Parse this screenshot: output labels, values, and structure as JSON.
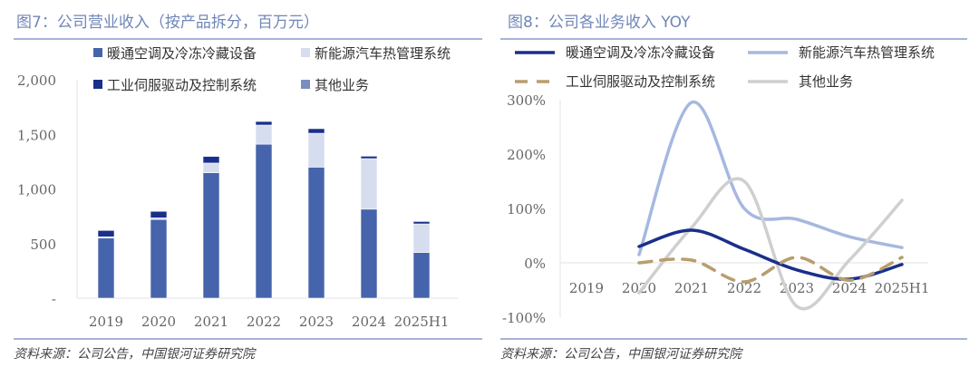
{
  "chart_data": [
    {
      "type": "bar",
      "stacked": true,
      "title": "图7：公司营业收入（按产品拆分，百万元）",
      "categories": [
        "2019",
        "2020",
        "2021",
        "2022",
        "2023",
        "2024",
        "2025H1"
      ],
      "series": [
        {
          "name": "暖通空调及冷冻冷藏设备",
          "color": "#4664ab",
          "values": [
            550,
            720,
            1148,
            1410,
            1200,
            815,
            418
          ]
        },
        {
          "name": "新能源汽车热管理系统",
          "color": "#d5ddef",
          "values": [
            12,
            15,
            89,
            175,
            310,
            463,
            262
          ]
        },
        {
          "name": "工业伺服驱动及控制系统",
          "color": "#1a2f8a",
          "values": [
            58,
            60,
            61,
            33,
            42,
            22,
            22
          ]
        },
        {
          "name": "其他业务",
          "color": "#7a8fc0",
          "values": [
            0,
            0,
            0,
            0,
            0,
            0,
            0
          ]
        }
      ],
      "yticks": [
        "-",
        "500",
        "1,000",
        "1,500",
        "2,000"
      ],
      "ylim": [
        0,
        2000
      ],
      "legend": "top"
    },
    {
      "type": "line",
      "title": "图8：公司各业务收入 YOY",
      "categories": [
        "2019",
        "2020",
        "2021",
        "2022",
        "2023",
        "2024",
        "2025H1"
      ],
      "series": [
        {
          "name": "暖通空调及冷冻冷藏设备",
          "color": "#1a2f8a",
          "dash": false,
          "values": [
            null,
            30,
            60,
            25,
            -13,
            -30,
            -3
          ]
        },
        {
          "name": "新能源汽车热管理系统",
          "color": "#a6b8e0",
          "dash": false,
          "values": [
            null,
            15,
            295,
            100,
            80,
            48,
            28
          ]
        },
        {
          "name": "工业伺服驱动及控制系统",
          "color": "#b89d6e",
          "dash": true,
          "values": [
            null,
            0,
            5,
            -35,
            10,
            -32,
            10
          ]
        },
        {
          "name": "其他业务",
          "color": "#cfcfcf",
          "dash": false,
          "values": [
            null,
            -55,
            65,
            150,
            -80,
            5,
            115
          ]
        }
      ],
      "yticks": [
        "-100%",
        "0%",
        "100%",
        "200%",
        "300%"
      ],
      "ylim": [
        -100,
        300
      ],
      "legend": "top"
    }
  ],
  "source": "资料来源：公司公告，中国银河证券研究院"
}
